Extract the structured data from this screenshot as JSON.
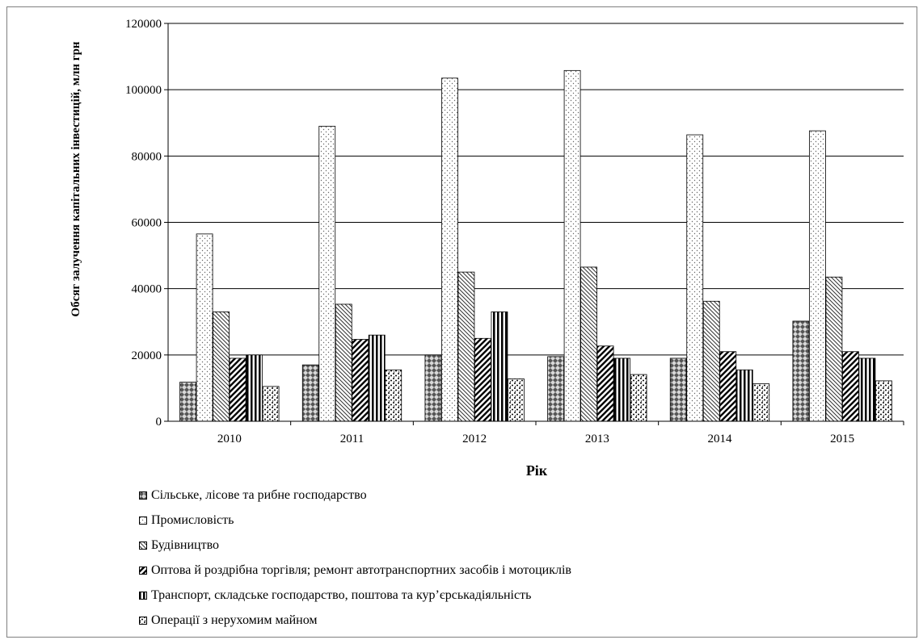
{
  "chart_data": {
    "type": "bar",
    "categories": [
      "2010",
      "2011",
      "2012",
      "2013",
      "2014",
      "2015"
    ],
    "series": [
      {
        "name": "Сільське, лісове та рибне господарство",
        "values": [
          11800,
          17000,
          20000,
          19500,
          19000,
          30200
        ],
        "pattern": "diamond"
      },
      {
        "name": "Промисловість",
        "values": [
          56500,
          89000,
          103500,
          105800,
          86400,
          87600
        ],
        "pattern": "dots"
      },
      {
        "name": "Будівництво",
        "values": [
          33000,
          35300,
          45000,
          46500,
          36200,
          43500
        ],
        "pattern": "diag-back"
      },
      {
        "name": "Оптова й роздрібна торгівля; ремонт автотранспортних засобів і мотоциклів",
        "values": [
          19000,
          24700,
          25000,
          22700,
          21000,
          21000
        ],
        "pattern": "diag-fwd"
      },
      {
        "name": "Транспорт, складське господарство, поштова та кур’єрськадіяльність",
        "values": [
          20000,
          26000,
          33000,
          19000,
          15500,
          19000
        ],
        "pattern": "vertical"
      },
      {
        "name": "Операції з нерухомим майном",
        "values": [
          10500,
          15500,
          12800,
          14100,
          11300,
          12200
        ],
        "pattern": "speckle"
      }
    ],
    "ylim": [
      0,
      120000
    ],
    "yticks": [
      "0",
      "20000",
      "40000",
      "60000",
      "80000",
      "100000",
      "120000"
    ],
    "xlabel": "Рік",
    "ylabel": "Обсяг залучення капітальних інвестицій, млн грн",
    "grid": "horizontal",
    "legend_position": "bottom"
  }
}
